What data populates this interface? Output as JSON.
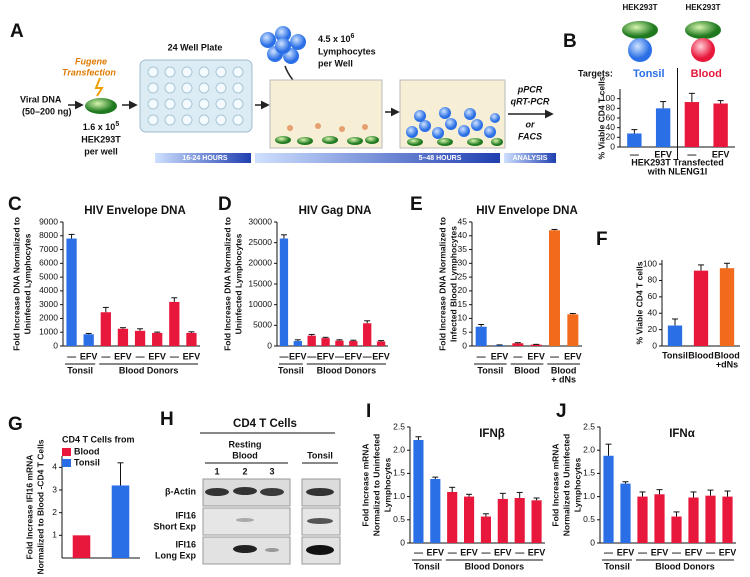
{
  "diagram": {
    "panel": "A",
    "transfection": [
      "Fugene",
      "Transfection"
    ],
    "viral_dna": [
      "Viral DNA",
      "(50–200 ng)"
    ],
    "cells": {
      "count": "1.6 x 10",
      "exponent": "5",
      "line": "HEK293T",
      "per": "per well"
    },
    "plate": "24 Well Plate",
    "lymphocytes": {
      "count": "4.5 x 10",
      "exponent": "6",
      "name": "Lymphocytes",
      "per": "per Well"
    },
    "readout": [
      "pPCR",
      "qRT-PCR",
      "or",
      "FACS"
    ],
    "timeline": [
      "16-24 HOURS",
      "5–48 HOURS",
      "ANALYSIS"
    ]
  },
  "blot": {
    "panel": "H",
    "title": "CD4 T Cells",
    "blood": [
      "Resting",
      "Blood"
    ],
    "tonsil": "Tonsil",
    "lanes": [
      "1",
      "2",
      "3"
    ],
    "rows": [
      [
        "β-Actin"
      ],
      [
        "IFI16",
        "Short Exp"
      ],
      [
        "IFI16",
        "Long Exp"
      ]
    ]
  },
  "chart_data": [
    {
      "type": "bar",
      "panel": "B",
      "cell_labels": [
        "HEK293T",
        "HEK293T"
      ],
      "targets_label": "Targets:",
      "group_labels": [
        "Tonsil",
        "Blood"
      ],
      "ylabel": [
        "% Viable CD4 T cells"
      ],
      "xlabel": [
        "HEK293T Transfected",
        "with NLENG1I"
      ],
      "categories": [
        "—",
        "EFV",
        "—",
        "EFV"
      ],
      "values": [
        28,
        80,
        93,
        90
      ],
      "errors": [
        8,
        14,
        18,
        6
      ],
      "colors": [
        "#2a6fe6",
        "#2a6fe6",
        "#e8173c",
        "#e8173c"
      ],
      "ylim": [
        0,
        120
      ],
      "yticks": [
        0,
        20,
        40,
        60,
        80,
        100
      ]
    },
    {
      "type": "bar",
      "panel": "C",
      "title": "HIV Envelope DNA",
      "ylabel": [
        "Fold Increase DNA Normalized to",
        "Uninfected Lymphocytes"
      ],
      "categories": [
        "—",
        "EFV",
        "—",
        "EFV",
        "—",
        "EFV",
        "—",
        "EFV"
      ],
      "group_labels": [
        "Tonsil",
        "Blood Donors"
      ],
      "values": [
        7800,
        850,
        2450,
        1250,
        1100,
        950,
        3200,
        950
      ],
      "errors": [
        300,
        60,
        350,
        80,
        150,
        60,
        300,
        80
      ],
      "colors": [
        "#2a6fe6",
        "#2a6fe6",
        "#e8173c",
        "#e8173c",
        "#e8173c",
        "#e8173c",
        "#e8173c",
        "#e8173c"
      ],
      "ylim": [
        0,
        9000
      ],
      "yticks": [
        0,
        1000,
        2000,
        3000,
        4000,
        5000,
        6000,
        7000,
        8000,
        9000
      ]
    },
    {
      "type": "bar",
      "panel": "D",
      "title": "HIV Gag DNA",
      "ylabel": [
        "Fold Increase DNA Normalized to",
        "Uninfected Lymphocytes"
      ],
      "categories": [
        "—",
        "EFV",
        "—",
        "EFV",
        "—",
        "EFV",
        "—",
        "EFV"
      ],
      "group_labels": [
        "Tonsil",
        "Blood Donors"
      ],
      "values": [
        26000,
        1200,
        2500,
        1900,
        1300,
        1200,
        5500,
        1100
      ],
      "errors": [
        900,
        300,
        300,
        200,
        200,
        200,
        600,
        200
      ],
      "colors": [
        "#2a6fe6",
        "#2a6fe6",
        "#e8173c",
        "#e8173c",
        "#e8173c",
        "#e8173c",
        "#e8173c",
        "#e8173c"
      ],
      "ylim": [
        0,
        30000
      ],
      "yticks": [
        0,
        5000,
        10000,
        15000,
        20000,
        25000,
        30000
      ]
    },
    {
      "type": "bar",
      "panel": "E",
      "title": "HIV Envelope DNA",
      "ylabel": [
        "Fold Increase DNA Normalized to",
        "Infected Blood Lymphocytes"
      ],
      "categories": [
        "—",
        "EFV",
        "—",
        "EFV",
        "—",
        "EFV"
      ],
      "group_labels": [
        "Tonsil",
        "Blood",
        [
          "Blood",
          "+ dNs"
        ]
      ],
      "values": [
        7,
        0.3,
        1,
        0.5,
        42,
        11.5
      ],
      "errors": [
        0.8,
        0.1,
        0.2,
        0.1,
        0.3,
        0.3
      ],
      "colors": [
        "#2a6fe6",
        "#2a6fe6",
        "#e8173c",
        "#e8173c",
        "#f26a1b",
        "#f26a1b"
      ],
      "ylim": [
        0,
        45
      ],
      "yticks": [
        0,
        5,
        10,
        15,
        20,
        25,
        30,
        35,
        40,
        45
      ]
    },
    {
      "type": "bar",
      "panel": "F",
      "ylabel": [
        "% Viable CD4 T cells"
      ],
      "categories": [
        "Tonsil",
        "Blood",
        [
          "Blood",
          "+dNs"
        ]
      ],
      "values": [
        25,
        92,
        95
      ],
      "errors": [
        8,
        7,
        6
      ],
      "colors": [
        "#2a6fe6",
        "#e8173c",
        "#f26a1b"
      ],
      "ylim": [
        0,
        105
      ],
      "yticks": [
        0,
        20,
        40,
        60,
        80,
        100
      ]
    },
    {
      "type": "bar",
      "panel": "G",
      "legend_title": "CD4 T Cells from",
      "legend": "upper left",
      "ylabel": [
        "Fold Increase IFI16 mRNA",
        "Normalized to Blood -CD4 T Cells"
      ],
      "categories": [
        null,
        null
      ],
      "series": [
        {
          "name": "Blood",
          "color": "#e8173c",
          "values": [
            1,
            null
          ]
        },
        {
          "name": "Tonsil",
          "color": "#2a6fe6",
          "values": [
            null,
            3.2
          ],
          "errors": [
            null,
            1.0
          ]
        }
      ],
      "ylim": [
        0,
        4.5
      ],
      "yticks": [
        1,
        2,
        3,
        4
      ]
    },
    {
      "type": "bar",
      "panel": "I",
      "title": "IFNβ",
      "ylabel": [
        "Fold Increase mRNA",
        "Normalized to Uninfected",
        "Lymphocytes"
      ],
      "categories": [
        "—",
        "EFV",
        "—",
        "EFV",
        "—",
        "EFV",
        "—",
        "EFV"
      ],
      "group_labels": [
        "Tonsil",
        "Blood Donors"
      ],
      "values": [
        2.22,
        1.38,
        1.1,
        1.0,
        0.57,
        0.95,
        0.97,
        0.92
      ],
      "errors": [
        0.07,
        0.04,
        0.1,
        0.05,
        0.06,
        0.12,
        0.12,
        0.05
      ],
      "colors": [
        "#2a6fe6",
        "#2a6fe6",
        "#e8173c",
        "#e8173c",
        "#e8173c",
        "#e8173c",
        "#e8173c",
        "#e8173c"
      ],
      "ylim": [
        0,
        2.5
      ],
      "yticks": [
        0,
        0.5,
        {
          "value": 1,
          "label": "1.0"
        },
        1.5,
        {
          "value": 2,
          "label": "2.0"
        },
        2.5
      ]
    },
    {
      "type": "bar",
      "panel": "J",
      "title": "IFNα",
      "ylabel": [
        "Fold Increase mRNA",
        "Normalized to Uninfected",
        "Lymphocytes"
      ],
      "categories": [
        "—",
        "EFV",
        "—",
        "EFV",
        "—",
        "EFV",
        "—",
        "EFV"
      ],
      "group_labels": [
        "Tonsil",
        "Blood Donors"
      ],
      "values": [
        1.88,
        1.28,
        1.0,
        1.05,
        0.57,
        0.98,
        1.02,
        1.0
      ],
      "errors": [
        0.25,
        0.04,
        0.1,
        0.1,
        0.1,
        0.12,
        0.12,
        0.12
      ],
      "colors": [
        "#2a6fe6",
        "#2a6fe6",
        "#e8173c",
        "#e8173c",
        "#e8173c",
        "#e8173c",
        "#e8173c",
        "#e8173c"
      ],
      "ylim": [
        0,
        2.5
      ],
      "yticks": [
        0,
        0.5,
        {
          "value": 1,
          "label": "1.0"
        },
        1.5,
        {
          "value": 2,
          "label": "2.0"
        },
        2.5
      ]
    }
  ]
}
